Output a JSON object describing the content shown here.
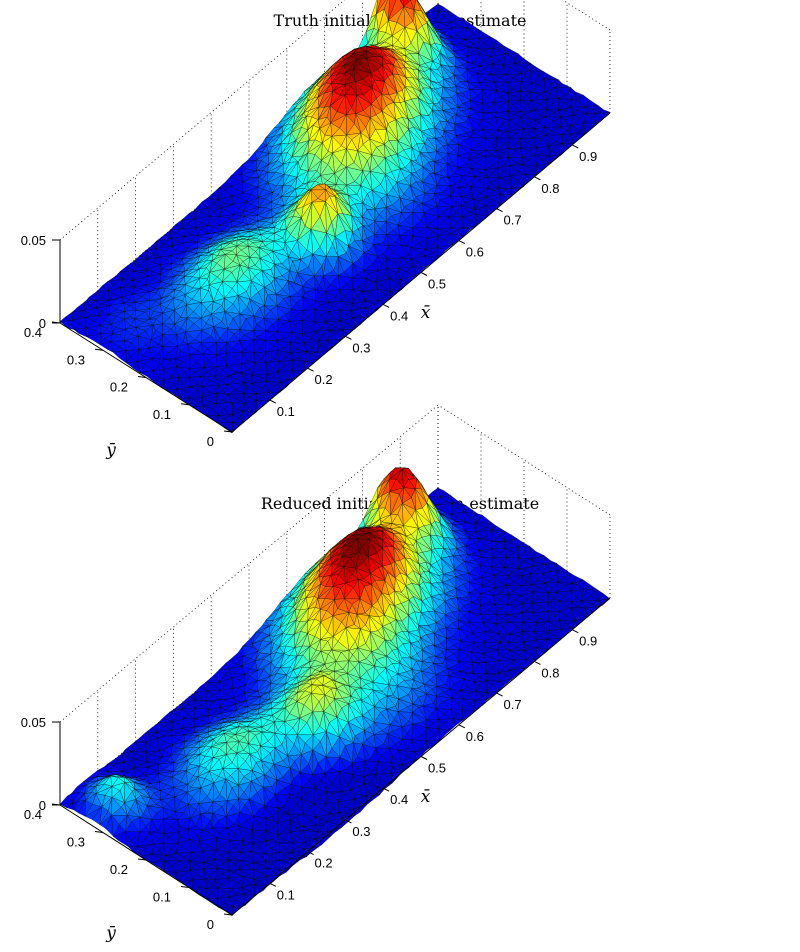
{
  "chart_data": [
    {
      "type": "surface",
      "title": "Truth initial condition estimate",
      "xlabel": "x̄",
      "ylabel": "ȳ",
      "zlabel": "",
      "xlim": [
        0,
        1.0
      ],
      "ylim": [
        0,
        0.4
      ],
      "zlim": [
        0,
        0.05
      ],
      "x_ticks": [
        "0.1",
        "0.2",
        "0.3",
        "0.4",
        "0.5",
        "0.6",
        "0.7",
        "0.8",
        "0.9"
      ],
      "y_ticks": [
        "0",
        "0.1",
        "0.2",
        "0.3",
        "0.4"
      ],
      "z_ticks": [
        "0",
        "0.05"
      ],
      "colormap": "jet",
      "grid": true,
      "peaks": [
        {
          "x": 0.86,
          "y": 0.37,
          "amplitude": 0.043,
          "sx": 0.035,
          "sy": 0.05
        },
        {
          "x": 0.7,
          "y": 0.3,
          "amplitude": 0.041,
          "sx": 0.09,
          "sy": 0.07
        },
        {
          "x": 0.58,
          "y": 0.24,
          "amplitude": 0.026,
          "sx": 0.08,
          "sy": 0.08
        },
        {
          "x": 0.43,
          "y": 0.17,
          "amplitude": 0.03,
          "sx": 0.04,
          "sy": 0.04
        },
        {
          "x": 0.26,
          "y": 0.22,
          "amplitude": 0.022,
          "sx": 0.09,
          "sy": 0.06
        },
        {
          "x": 0.06,
          "y": 0.3,
          "amplitude": 0.004,
          "sx": 0.06,
          "sy": 0.05
        }
      ]
    },
    {
      "type": "surface",
      "title": "Reduced initial condition estimate",
      "xlabel": "x̄",
      "ylabel": "ȳ",
      "zlabel": "",
      "xlim": [
        0,
        1.0
      ],
      "ylim": [
        0,
        0.4
      ],
      "zlim": [
        0,
        0.05
      ],
      "x_ticks": [
        "0.1",
        "0.2",
        "0.3",
        "0.4",
        "0.5",
        "0.6",
        "0.7",
        "0.8",
        "0.9"
      ],
      "y_ticks": [
        "0",
        "0.1",
        "0.2",
        "0.3",
        "0.4"
      ],
      "z_ticks": [
        "0",
        "0.05"
      ],
      "colormap": "jet",
      "grid": true,
      "peaks": [
        {
          "x": 0.86,
          "y": 0.36,
          "amplitude": 0.04,
          "sx": 0.04,
          "sy": 0.05
        },
        {
          "x": 0.7,
          "y": 0.3,
          "amplitude": 0.043,
          "sx": 0.09,
          "sy": 0.07
        },
        {
          "x": 0.57,
          "y": 0.24,
          "amplitude": 0.027,
          "sx": 0.08,
          "sy": 0.08
        },
        {
          "x": 0.42,
          "y": 0.17,
          "amplitude": 0.022,
          "sx": 0.05,
          "sy": 0.05
        },
        {
          "x": 0.26,
          "y": 0.22,
          "amplitude": 0.02,
          "sx": 0.08,
          "sy": 0.06
        },
        {
          "x": 0.06,
          "y": 0.32,
          "amplitude": 0.017,
          "sx": 0.035,
          "sy": 0.04
        },
        {
          "x": 0.3,
          "y": 0.06,
          "amplitude": -0.006,
          "sx": 0.12,
          "sy": 0.05
        },
        {
          "x": 0.5,
          "y": 0.1,
          "amplitude": 0.006,
          "sx": 0.1,
          "sy": 0.05
        }
      ]
    }
  ]
}
